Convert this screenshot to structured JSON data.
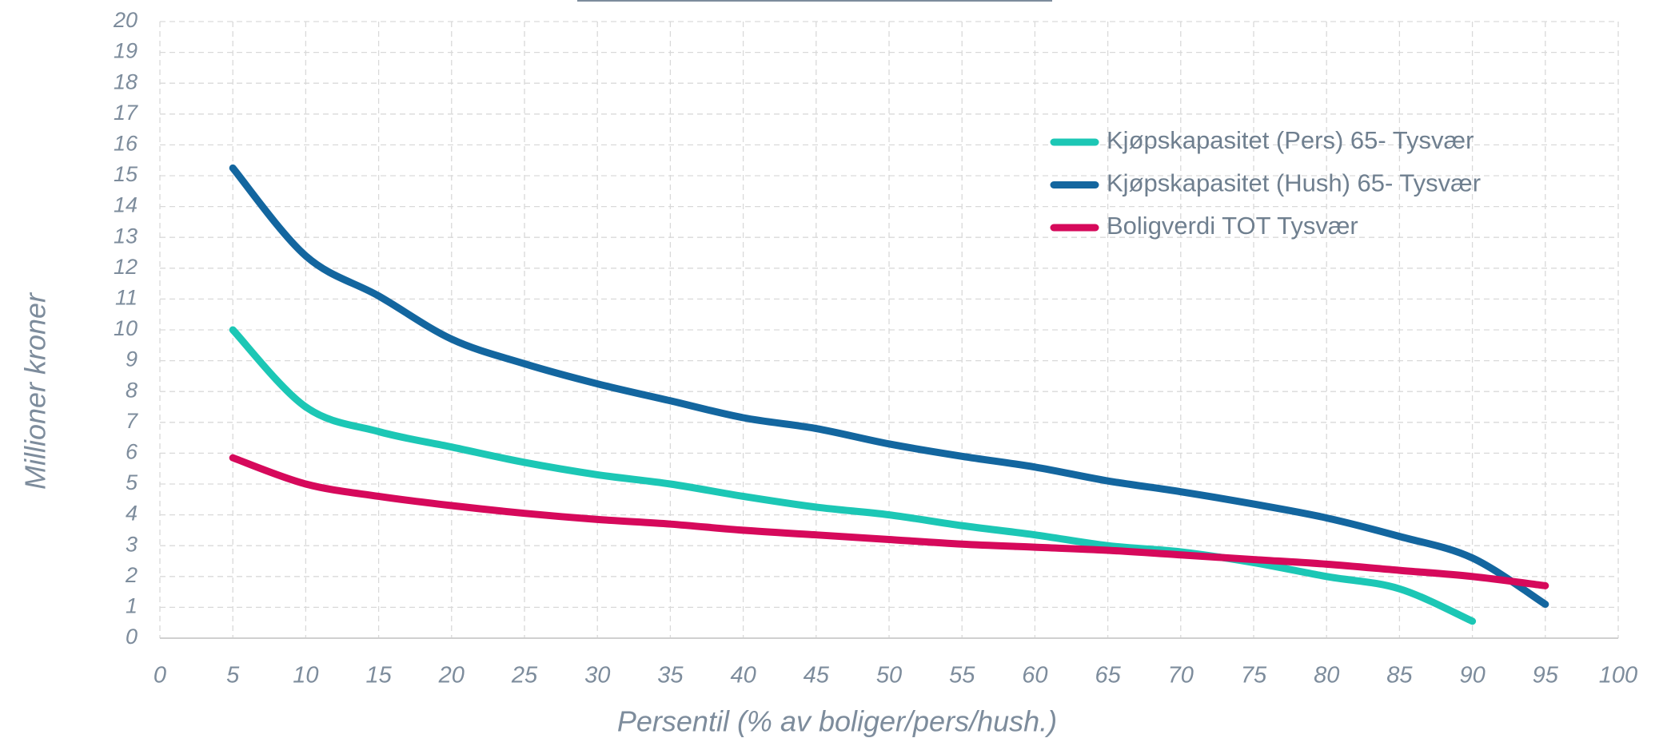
{
  "chart_data": {
    "type": "line",
    "xlabel": "Persentil (% av boliger/pers/hush.)",
    "ylabel": "Millioner kroner",
    "x": [
      5,
      10,
      15,
      20,
      25,
      30,
      35,
      40,
      45,
      50,
      55,
      60,
      65,
      70,
      75,
      80,
      85,
      90,
      95
    ],
    "series": [
      {
        "name": "Kjøpskapasitet (Pers) 65- Tysvær",
        "color": "#1cc7b5",
        "values": [
          10,
          7.5,
          6.7,
          6.2,
          5.7,
          5.3,
          5.0,
          4.6,
          4.25,
          4.0,
          3.65,
          3.35,
          3.0,
          2.8,
          2.45,
          2.0,
          1.6,
          0.55,
          null
        ]
      },
      {
        "name": "Kjøpskapasitet (Hush) 65- Tysvær",
        "color": "#13669f",
        "values": [
          15.25,
          12.4,
          11.1,
          9.7,
          8.9,
          8.25,
          7.7,
          7.15,
          6.8,
          6.3,
          5.9,
          5.55,
          5.1,
          4.75,
          4.35,
          3.9,
          3.3,
          2.6,
          1.1
        ]
      },
      {
        "name": "Boligverdi TOT Tysvær",
        "color": "#d6095b",
        "values": [
          5.85,
          5.0,
          4.6,
          4.3,
          4.05,
          3.85,
          3.7,
          3.5,
          3.35,
          3.2,
          3.05,
          2.95,
          2.85,
          2.7,
          2.55,
          2.4,
          2.2,
          2.0,
          1.7
        ]
      }
    ],
    "xlim": [
      0,
      100
    ],
    "xticks": [
      0,
      5,
      10,
      15,
      20,
      25,
      30,
      35,
      40,
      45,
      50,
      55,
      60,
      65,
      70,
      75,
      80,
      85,
      90,
      95,
      100
    ],
    "ylim": [
      0,
      20
    ],
    "yticks": [
      0,
      1,
      2,
      3,
      4,
      5,
      6,
      7,
      8,
      9,
      10,
      11,
      12,
      13,
      14,
      15,
      16,
      17,
      18,
      19,
      20
    ],
    "grid": true,
    "legend": "upper right"
  }
}
